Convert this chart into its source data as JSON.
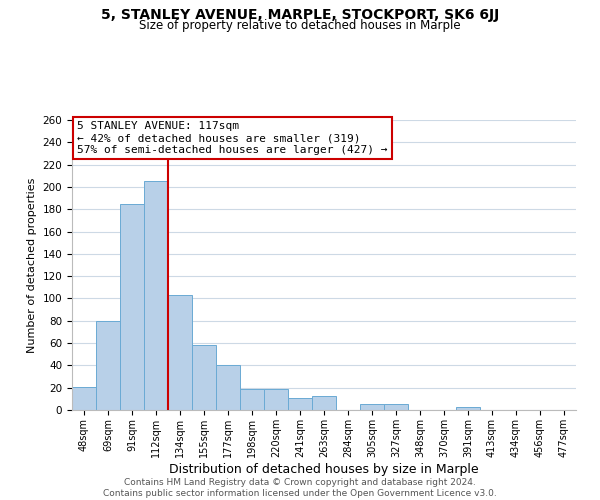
{
  "title": "5, STANLEY AVENUE, MARPLE, STOCKPORT, SK6 6JJ",
  "subtitle": "Size of property relative to detached houses in Marple",
  "xlabel": "Distribution of detached houses by size in Marple",
  "ylabel": "Number of detached properties",
  "bar_labels": [
    "48sqm",
    "69sqm",
    "91sqm",
    "112sqm",
    "134sqm",
    "155sqm",
    "177sqm",
    "198sqm",
    "220sqm",
    "241sqm",
    "263sqm",
    "284sqm",
    "305sqm",
    "327sqm",
    "348sqm",
    "370sqm",
    "391sqm",
    "413sqm",
    "434sqm",
    "456sqm",
    "477sqm"
  ],
  "bar_values": [
    21,
    80,
    185,
    205,
    103,
    58,
    40,
    19,
    19,
    11,
    13,
    0,
    5,
    5,
    0,
    0,
    3,
    0,
    0,
    0,
    0
  ],
  "bar_color": "#b8d0e8",
  "bar_edge_color": "#6aaad4",
  "vline_x": 3.5,
  "vline_color": "#cc0000",
  "ylim": [
    0,
    260
  ],
  "yticks": [
    0,
    20,
    40,
    60,
    80,
    100,
    120,
    140,
    160,
    180,
    200,
    220,
    240,
    260
  ],
  "annotation_title": "5 STANLEY AVENUE: 117sqm",
  "annotation_line1": "← 42% of detached houses are smaller (319)",
  "annotation_line2": "57% of semi-detached houses are larger (427) →",
  "annotation_box_color": "#ffffff",
  "annotation_box_edge": "#cc0000",
  "footer_line1": "Contains HM Land Registry data © Crown copyright and database right 2024.",
  "footer_line2": "Contains public sector information licensed under the Open Government Licence v3.0.",
  "background_color": "#ffffff",
  "grid_color": "#cdd9e5"
}
